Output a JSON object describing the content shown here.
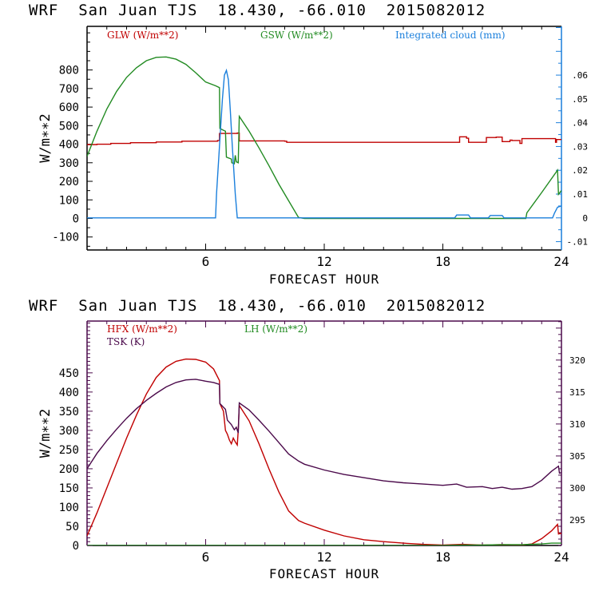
{
  "chart_data": [
    {
      "type": "line",
      "title": "WRF  San Juan TJS  18.430, -66.010  2015082012",
      "xlabel": "FORECAST HOUR",
      "ylabel": "W/m**2",
      "y2label": "",
      "xlim": [
        0,
        24
      ],
      "ylim": [
        -170,
        1035
      ],
      "y2lim": [
        -0.0135,
        0.0805
      ],
      "xticks": [
        6,
        12,
        18,
        24
      ],
      "xtick_labels": [
        "6",
        "12",
        "18",
        "24"
      ],
      "yticks": [
        -100,
        0,
        100,
        200,
        300,
        400,
        500,
        600,
        700,
        800
      ],
      "ytick_labels": [
        "-100",
        "0",
        "100",
        "200",
        "300",
        "400",
        "500",
        "600",
        "700",
        "800"
      ],
      "y2ticks": [
        -0.01,
        0,
        0.01,
        0.02,
        0.03,
        0.04,
        0.05,
        0.06
      ],
      "y2tick_labels": [
        "-.01",
        "0",
        ".01",
        ".02",
        ".03",
        ".04",
        ".05",
        ".06"
      ],
      "grid": false,
      "legend": "top",
      "series": [
        {
          "name": "GLW (W/m**2)",
          "axis": "left",
          "color": "#c00000",
          "step": true,
          "x": [
            0,
            0.5,
            1.2,
            2.2,
            3.5,
            4.8,
            6.6,
            6.7,
            7.6,
            7.7,
            10,
            10.1,
            18.8,
            18.85,
            19.2,
            19.3,
            19.9,
            20.2,
            20.7,
            21.0,
            21.4,
            21.5,
            21.9,
            22.0,
            23.7,
            23.75,
            24
          ],
          "y": [
            398,
            400,
            404,
            408,
            412,
            416,
            420,
            458,
            460,
            418,
            416,
            410,
            410,
            440,
            432,
            410,
            410,
            436,
            438,
            414,
            422,
            420,
            404,
            430,
            410,
            425,
            425
          ]
        },
        {
          "name": "GSW (W/m**2)",
          "axis": "left",
          "color": "#228b22",
          "x": [
            0,
            0.5,
            1,
            1.5,
            2,
            2.5,
            3,
            3.5,
            4,
            4.5,
            5,
            5.5,
            6,
            6.5,
            6.7,
            6.72,
            6.9,
            7.0,
            7.05,
            7.3,
            7.32,
            7.45,
            7.5,
            7.55,
            7.65,
            7.7,
            8.2,
            8.7,
            9.2,
            9.7,
            10.2,
            10.7,
            11,
            22.2,
            22.25,
            23,
            23.8,
            23.85,
            24
          ],
          "y": [
            335,
            470,
            590,
            685,
            760,
            812,
            850,
            868,
            870,
            858,
            830,
            785,
            735,
            715,
            705,
            485,
            475,
            470,
            330,
            320,
            300,
            295,
            340,
            305,
            300,
            550,
            470,
            380,
            285,
            185,
            95,
            5,
            0,
            0,
            30,
            140,
            260,
            130,
            150
          ]
        },
        {
          "name": "Integrated cloud (mm)",
          "axis": "right",
          "color": "#1a7fdc",
          "x": [
            0,
            6.5,
            6.55,
            6.7,
            6.85,
            6.95,
            7.05,
            7.15,
            7.25,
            7.35,
            7.5,
            7.6,
            7.65,
            18.6,
            18.7,
            19.3,
            19.4,
            20.3,
            20.4,
            21.0,
            21.1,
            23.55,
            23.65,
            23.8,
            24
          ],
          "y": [
            0,
            0,
            0.01,
            0.03,
            0.05,
            0.06,
            0.062,
            0.058,
            0.045,
            0.03,
            0.01,
            0.0,
            0,
            0,
            0.0012,
            0.0012,
            0,
            0,
            0.001,
            0.001,
            0,
            0,
            0.002,
            0.0045,
            0.005
          ]
        }
      ]
    },
    {
      "type": "line",
      "title": "WRF  San Juan TJS  18.430, -66.010  2015082012",
      "xlabel": "FORECAST HOUR",
      "ylabel": "W/m**2",
      "xlim": [
        0,
        24
      ],
      "ylim": [
        0,
        585
      ],
      "y2lim": [
        291,
        326.1
      ],
      "xticks": [
        6,
        12,
        18,
        24
      ],
      "xtick_labels": [
        "6",
        "12",
        "18",
        "24"
      ],
      "yticks": [
        0,
        50,
        100,
        150,
        200,
        250,
        300,
        350,
        400,
        450
      ],
      "ytick_labels": [
        "0",
        "50",
        "100",
        "150",
        "200",
        "250",
        "300",
        "350",
        "400",
        "450"
      ],
      "y2ticks": [
        295,
        300,
        305,
        310,
        315,
        320
      ],
      "y2tick_labels": [
        "295",
        "300",
        "305",
        "310",
        "315",
        "320"
      ],
      "grid": false,
      "legend": "top-left",
      "series": [
        {
          "name": "HFX (W/m**2)",
          "axis": "left",
          "color": "#c00000",
          "x": [
            0,
            0.5,
            1,
            1.5,
            2,
            2.5,
            3,
            3.5,
            4,
            4.5,
            5,
            5.5,
            6,
            6.4,
            6.7,
            6.72,
            6.9,
            7.0,
            7.1,
            7.2,
            7.3,
            7.4,
            7.5,
            7.6,
            7.65,
            7.7,
            8.2,
            8.7,
            9.2,
            9.7,
            10.2,
            10.7,
            11,
            12,
            13,
            14,
            15,
            16,
            17,
            18,
            19,
            20,
            21,
            22,
            22.5,
            23,
            23.5,
            23.8,
            23.85,
            24
          ],
          "y": [
            25,
            85,
            150,
            215,
            280,
            340,
            395,
            438,
            465,
            480,
            486,
            485,
            478,
            460,
            430,
            370,
            350,
            300,
            290,
            275,
            265,
            280,
            270,
            262,
            300,
            365,
            325,
            265,
            200,
            140,
            90,
            65,
            58,
            40,
            25,
            15,
            10,
            6,
            3,
            1,
            3,
            1,
            2,
            1,
            4,
            18,
            38,
            55,
            30,
            32
          ]
        },
        {
          "name": "LH (W/m**2)",
          "axis": "left",
          "color": "#228b22",
          "x": [
            0,
            18,
            19,
            20,
            21,
            22,
            23,
            23.5,
            24
          ],
          "y": [
            0,
            0,
            1,
            1,
            2,
            2,
            4,
            6,
            6
          ]
        },
        {
          "name": "TSK (K)",
          "axis": "right",
          "color": "#4b0a4b",
          "x": [
            0,
            0.5,
            1,
            1.5,
            2,
            2.5,
            3,
            3.5,
            4,
            4.5,
            5,
            5.5,
            6,
            6.4,
            6.7,
            6.72,
            7.0,
            7.1,
            7.3,
            7.45,
            7.55,
            7.65,
            7.7,
            8.2,
            8.7,
            9.2,
            9.7,
            10.2,
            10.7,
            11,
            12,
            13,
            14,
            15,
            16,
            17,
            18,
            18.7,
            19.2,
            20,
            20.5,
            21,
            21.5,
            22,
            22.5,
            23,
            23.5,
            23.85,
            23.9,
            24
          ],
          "y": [
            303.0,
            305.4,
            307.4,
            309.2,
            310.9,
            312.4,
            313.7,
            314.8,
            315.8,
            316.5,
            316.9,
            317.0,
            316.7,
            316.5,
            316.2,
            313.2,
            312.3,
            310.6,
            309.9,
            309.1,
            309.5,
            308.6,
            313.3,
            312.2,
            310.6,
            308.9,
            307.1,
            305.3,
            304.2,
            303.7,
            302.8,
            302.1,
            301.6,
            301.1,
            300.8,
            300.6,
            300.4,
            300.6,
            300.1,
            300.2,
            299.9,
            300.1,
            299.8,
            299.9,
            300.2,
            301.2,
            302.6,
            303.4,
            302.3,
            302.4
          ]
        }
      ]
    }
  ],
  "panels": [
    {
      "title": "WRF  San Juan TJS  18.430, -66.010  2015082012",
      "legend": [
        {
          "label": "GLW (W/m**2)",
          "color": "#c00000"
        },
        {
          "label": "GSW (W/m**2)",
          "color": "#228b22"
        },
        {
          "label": "Integrated cloud (mm)",
          "color": "#1a7fdc"
        }
      ],
      "xlabel": "FORECAST HOUR",
      "ylabel": "W/m**2",
      "right_axis_color": "#1a7fdc"
    },
    {
      "title": "WRF  San Juan TJS  18.430, -66.010  2015082012",
      "legend": [
        {
          "label": "HFX (W/m**2)",
          "color": "#c00000"
        },
        {
          "label": "LH  (W/m**2)",
          "color": "#228b22"
        },
        {
          "label": "TSK (K)",
          "color": "#4b0a4b"
        }
      ],
      "xlabel": "FORECAST HOUR",
      "ylabel": "W/m**2",
      "right_axis_color": "#4b0a4b"
    }
  ]
}
